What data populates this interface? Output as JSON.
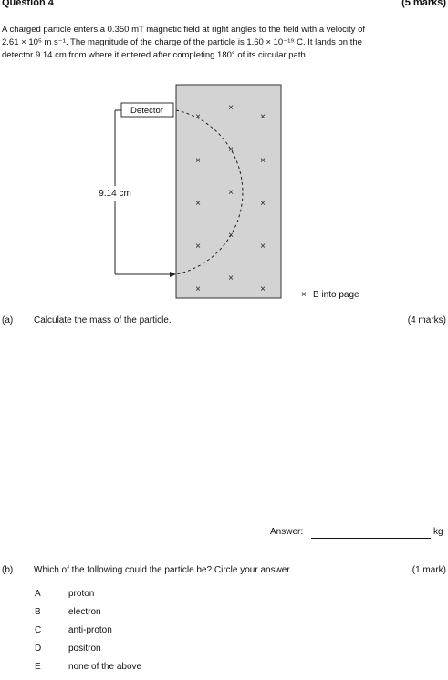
{
  "question": {
    "title": "Question 4",
    "marks": "(5 marks)",
    "intro_line1": "A charged particle enters a 0.350 mT magnetic field at right angles to the field with a velocity of",
    "intro_line2": "2.61 × 10⁵ m s⁻¹. The magnitude of the charge of the particle is 1.60 × 10⁻¹⁹ C. It lands on the",
    "intro_line3": "detector 9.14 cm from where it entered after completing 180° of its circular path."
  },
  "diagram": {
    "detector_label": "Detector",
    "distance_label": "9.14 cm",
    "field_symbol": "×",
    "legend_text": "B into page",
    "field_color": "#d3d3d3"
  },
  "part_a": {
    "label": "(a)",
    "text": "Calculate the mass of the particle.",
    "marks": "(4 marks)",
    "answer_label": "Answer:",
    "answer_unit": "kg"
  },
  "part_b": {
    "label": "(b)",
    "text": "Which of the following could the particle be? Circle your answer.",
    "marks": "(1 mark)",
    "options": [
      {
        "letter": "A",
        "text": "proton"
      },
      {
        "letter": "B",
        "text": "electron"
      },
      {
        "letter": "C",
        "text": "anti-proton"
      },
      {
        "letter": "D",
        "text": "positron"
      },
      {
        "letter": "E",
        "text": "none of the above"
      }
    ]
  }
}
